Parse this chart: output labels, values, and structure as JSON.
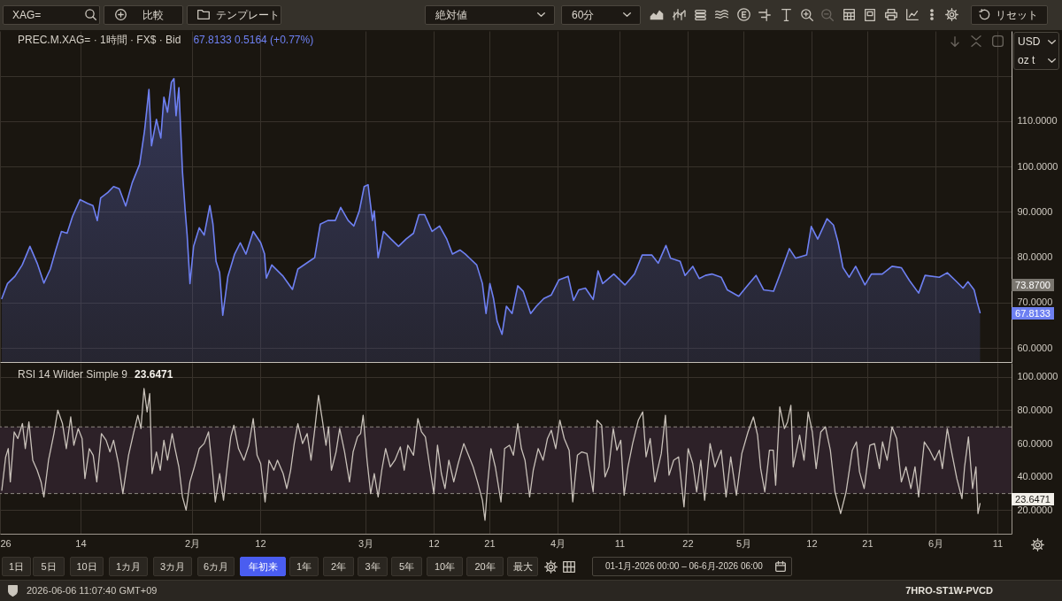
{
  "chart_data": [
    {
      "type": "other",
      "annotations": [
        "XAG=",
        "比較",
        "テンプレート",
        "絶対値",
        "60分",
        "リセット"
      ]
    },
    {
      "type": "area",
      "title": "PREC.M.XAG= · 1時間 · FX$ · Bid",
      "subtitle": "67.8133 0.5164 (+0.77%)",
      "color": "#6e80f2",
      "x": [
        "2026-01-01T07:00",
        "2026-01-02T05:00",
        "2026-01-03T10:00",
        "2026-01-04T14:00",
        "2026-01-05T20:00",
        "2026-01-07T00:00",
        "2026-01-08T02:00",
        "2026-01-09T03:00",
        "2026-01-10T00:00",
        "2026-01-10T22:00",
        "2026-01-11T20:00",
        "2026-01-12T17:00",
        "2026-01-13T22:00",
        "2026-01-15T03:00",
        "2026-01-16T00:00",
        "2026-01-16T17:00",
        "2026-01-17T06:00",
        "2026-01-18T10:00",
        "2026-01-19T08:00",
        "2026-01-20T06:00",
        "2026-01-21T07:00",
        "2026-01-22T08:00",
        "2026-01-23T13:00",
        "2026-01-24T08:00",
        "2026-01-25T01:00",
        "2026-01-25T11:00",
        "2026-01-26T06:00",
        "2026-01-26T23:00",
        "2026-01-27T11:00",
        "2026-01-28T01:00",
        "2026-01-28T16:00",
        "2026-01-29T02:00",
        "2026-01-29T10:00",
        "2026-01-29T21:00",
        "2026-01-30T11:00",
        "2026-01-30T21:00",
        "2026-01-31T05:00",
        "2026-01-31T16:00",
        "2026-02-01T06:00",
        "2026-02-02T04:00",
        "2026-02-02T23:00",
        "2026-02-03T21:00",
        "2026-02-04T09:00",
        "2026-02-04T21:00",
        "2026-02-05T11:00",
        "2026-02-05T23:00",
        "2026-02-06T19:00",
        "2026-02-07T21:00",
        "2026-02-08T19:00",
        "2026-02-09T17:00",
        "2026-02-10T21:00",
        "2026-02-12T02:00",
        "2026-02-12T17:00",
        "2026-02-13T00:00",
        "2026-02-13T21:00",
        "2026-02-15T17:00",
        "2026-02-17T05:00",
        "2026-02-18T02:00",
        "2026-02-19T22:00",
        "2026-02-20T19:00",
        "2026-02-21T17:00",
        "2026-02-22T22:00",
        "2026-02-24T03:00",
        "2026-02-25T00:00",
        "2026-02-26T05:00",
        "2026-02-27T03:00",
        "2026-02-28T00:00",
        "2026-02-28T19:00",
        "2026-03-01T10:00",
        "2026-03-02T03:00",
        "2026-03-02T10:00",
        "2026-03-03T01:00",
        "2026-03-03T22:00",
        "2026-03-05T03:00",
        "2026-03-06T08:00",
        "2026-03-07T13:00",
        "2026-03-08T18:00",
        "2026-03-09T15:00",
        "2026-03-10T13:00",
        "2026-03-11T18:00",
        "2026-03-12T23:00",
        "2026-03-14T03:00",
        "2026-03-15T01:00",
        "2026-03-16T06:00",
        "2026-03-17T03:00",
        "2026-03-18T01:00",
        "2026-03-18T23:00",
        "2026-03-19T21:00",
        "2026-03-20T11:00",
        "2026-03-21T02:00",
        "2026-03-21T16:00",
        "2026-03-22T06:00",
        "2026-03-23T01:00",
        "2026-03-23T18:00",
        "2026-03-24T16:00",
        "2026-03-25T14:00",
        "2026-03-26T11:00",
        "2026-03-27T16:00",
        "2026-03-28T14:00",
        "2026-03-29T19:00",
        "2026-03-31T00:00",
        "2026-04-01T05:00",
        "2026-04-02T17:00",
        "2026-04-03T14:00",
        "2026-04-04T10:00",
        "2026-04-05T12:00",
        "2026-04-06T18:00",
        "2026-04-07T13:00",
        "2026-04-08T07:00",
        "2026-04-10T02:00",
        "2026-04-11T21:00",
        "2026-04-13T10:00",
        "2026-04-14T16:00",
        "2026-04-16T05:00",
        "2026-04-17T06:00",
        "2026-04-18T12:00",
        "2026-04-19T06:00",
        "2026-04-20T19:00",
        "2026-04-21T14:00",
        "2026-04-22T20:00",
        "2026-04-23T21:00",
        "2026-04-24T21:00",
        "2026-04-25T22:00",
        "2026-04-27T10:00",
        "2026-04-28T10:00",
        "2026-04-30T06:00",
        "2026-05-01T12:00",
        "2026-05-03T01:00",
        "2026-05-04T07:00",
        "2026-05-05T21:00",
        "2026-05-07T03:00",
        "2026-05-08T10:00",
        "2026-05-09T10:00",
        "2026-05-11T05:00",
        "2026-05-11T23:00",
        "2026-05-13T00:00",
        "2026-05-14T12:00",
        "2026-05-15T13:00",
        "2026-05-16T07:00",
        "2026-05-17T02:00",
        "2026-05-18T02:00",
        "2026-05-19T03:00",
        "2026-05-20T15:00",
        "2026-05-21T16:00",
        "2026-05-23T10:00",
        "2026-05-25T00:00",
        "2026-05-26T12:00",
        "2026-05-27T19:00",
        "2026-05-29T07:00",
        "2026-05-30T08:00",
        "2026-06-01T15:00",
        "2026-06-02T22:00",
        "2026-06-04T05:00",
        "2026-06-05T11:00",
        "2026-06-06T06:00",
        "2026-06-07T06:00",
        "2026-06-07T18:00",
        "2026-06-08T05:00"
      ],
      "values": [
        70.9,
        74.2,
        75.8,
        78.3,
        82.4,
        78.7,
        74.3,
        77.4,
        81.6,
        85.7,
        85.3,
        89.0,
        92.7,
        91.9,
        91.4,
        88.1,
        93.1,
        94.3,
        95.6,
        95.1,
        91.3,
        96.4,
        100.5,
        107.9,
        117.0,
        104.6,
        110.4,
        106.3,
        115.3,
        112.0,
        118.6,
        119.4,
        111.2,
        117.4,
        98.8,
        90.6,
        84.9,
        74.2,
        82.4,
        86.5,
        84.9,
        91.4,
        87.3,
        79.1,
        76.6,
        67.2,
        75.8,
        80.7,
        83.2,
        80.7,
        85.7,
        83.2,
        80.7,
        75.4,
        78.3,
        75.8,
        72.9,
        77.4,
        79.1,
        79.9,
        87.3,
        88.1,
        88.1,
        91.0,
        88.1,
        86.9,
        90.2,
        95.6,
        96.0,
        88.1,
        90.2,
        79.9,
        85.7,
        84.0,
        82.4,
        84.0,
        85.3,
        89.4,
        89.4,
        85.7,
        86.9,
        84.0,
        80.7,
        81.6,
        80.7,
        79.5,
        78.3,
        74.2,
        67.6,
        74.2,
        70.9,
        65.9,
        63.0,
        69.2,
        67.6,
        73.7,
        72.5,
        67.6,
        69.2,
        70.9,
        71.7,
        75.0,
        75.8,
        70.5,
        72.8,
        73.2,
        70.7,
        77.0,
        74.2,
        76.3,
        73.9,
        76.3,
        80.5,
        80.5,
        78.7,
        82.6,
        79.8,
        79.1,
        76.0,
        78.0,
        75.3,
        76.0,
        76.3,
        75.6,
        72.8,
        71.4,
        73.5,
        76.0,
        72.8,
        72.5,
        77.0,
        81.9,
        79.8,
        80.5,
        86.8,
        84.0,
        88.5,
        87.1,
        83.3,
        77.7,
        75.6,
        78.0,
        73.9,
        76.3,
        76.3,
        78.0,
        77.7,
        74.9,
        72.1,
        76.0,
        75.6,
        76.6,
        74.9,
        73.2,
        74.6,
        72.8,
        70.0,
        67.8
      ],
      "xlim": [
        "2026-01-01",
        "2026-06-13T07:00"
      ],
      "xticks": [
        {
          "value": "2026-01-01",
          "label": null
        },
        {
          "value": "2026-01-14",
          "label": null
        },
        {
          "value": "2026-02-01",
          "label": null
        },
        {
          "value": "2026-02-12",
          "label": null
        },
        {
          "value": "2026-03-01",
          "label": null
        },
        {
          "value": "2026-03-12",
          "label": null
        },
        {
          "value": "2026-03-21",
          "label": null
        },
        {
          "value": "2026-04-01",
          "label": null
        },
        {
          "value": "2026-04-11",
          "label": null
        },
        {
          "value": "2026-04-22",
          "label": null
        },
        {
          "value": "2026-05-01",
          "label": null
        },
        {
          "value": "2026-05-12",
          "label": null
        },
        {
          "value": "2026-05-21",
          "label": null
        },
        {
          "value": "2026-06-01",
          "label": null
        },
        {
          "value": "2026-06-11",
          "label": null
        }
      ],
      "ylim": [
        56.9,
        129.9
      ],
      "yticks": [
        {
          "value": 60,
          "label": "60.0000"
        },
        {
          "value": 70,
          "label": "70.0000"
        },
        {
          "value": 80,
          "label": "80.0000"
        },
        {
          "value": 90,
          "label": "90.0000"
        },
        {
          "value": 100,
          "label": "100.0000"
        },
        {
          "value": 110,
          "label": "110.0000"
        },
        {
          "value": 120,
          "label": null
        }
      ],
      "grid": true,
      "tick_labels": "y",
      "annotations": [
        "USD",
        "oz t",
        "73.8700",
        "67.8133"
      ]
    },
    {
      "type": "line",
      "title": "RSI 14 Wilder Simple 9",
      "subtitle": "23.6471",
      "color": "#c8c1b9",
      "x": [
        "2026-01-01T07:00",
        "2026-01-01T22:00",
        "2026-01-02T08:00",
        "2026-01-02T16:00",
        "2026-01-03T07:00",
        "2026-01-03T21:00",
        "2026-01-04T15:00",
        "2026-01-05T02:00",
        "2026-01-05T16:00",
        "2026-01-06T07:00",
        "2026-01-07T00:00",
        "2026-01-07T15:00",
        "2026-01-08T02:00",
        "2026-01-08T20:00",
        "2026-01-09T17:00",
        "2026-01-10T08:00",
        "2026-01-11T02:00",
        "2026-01-11T17:00",
        "2026-01-12T10:00",
        "2026-01-12T22:00",
        "2026-01-13T15:00",
        "2026-01-14T06:00",
        "2026-01-14T17:00",
        "2026-01-15T10:00",
        "2026-01-16T01:00",
        "2026-01-16T15:00",
        "2026-01-17T09:00",
        "2026-01-18T03:00",
        "2026-01-18T18:00",
        "2026-01-19T08:00",
        "2026-01-20T03:00",
        "2026-01-20T20:00",
        "2026-01-21T18:00",
        "2026-01-22T13:00",
        "2026-01-23T06:00",
        "2026-01-23T18:00",
        "2026-01-24T06:00",
        "2026-01-24T18:00",
        "2026-01-25T04:00",
        "2026-01-25T13:00",
        "2026-01-26T06:00",
        "2026-01-26T21:00",
        "2026-01-27T11:00",
        "2026-01-28T01:00",
        "2026-01-28T19:00",
        "2026-01-29T06:00",
        "2026-01-29T21:00",
        "2026-01-30T11:00",
        "2026-01-31T01:00",
        "2026-01-31T16:00",
        "2026-02-01T09:00",
        "2026-02-02T04:00",
        "2026-02-02T23:00",
        "2026-02-03T16:00",
        "2026-02-04T06:00",
        "2026-02-04T18:00",
        "2026-02-05T11:00",
        "2026-02-06T02:00",
        "2026-02-06T16:00",
        "2026-02-07T06:00",
        "2026-02-07T18:00",
        "2026-02-08T12:00",
        "2026-02-09T09:00",
        "2026-02-10T04:00",
        "2026-02-10T21:00",
        "2026-02-11T12:00",
        "2026-02-12T02:00",
        "2026-02-12T19:00",
        "2026-02-13T10:00",
        "2026-02-14T05:00",
        "2026-02-14T19:00",
        "2026-02-15T17:00",
        "2026-02-16T07:00",
        "2026-02-16T22:00",
        "2026-02-17T12:00",
        "2026-02-18T02:00",
        "2026-02-18T20:00",
        "2026-02-19T14:00",
        "2026-02-20T05:00",
        "2026-02-20T19:00",
        "2026-02-21T10:00",
        "2026-02-22T00:00",
        "2026-02-22T15:00",
        "2026-02-23T01:00",
        "2026-02-23T12:00",
        "2026-02-24T06:00",
        "2026-02-24T20:00",
        "2026-02-25T15:00",
        "2026-02-26T10:00",
        "2026-02-27T00:00",
        "2026-02-27T17:00",
        "2026-02-28T05:00",
        "2026-02-28T15:00",
        "2026-03-01T06:00",
        "2026-03-01T20:00",
        "2026-03-02T10:00",
        "2026-03-03T01:00",
        "2026-03-03T15:00",
        "2026-03-04T06:00",
        "2026-03-05T00:00",
        "2026-03-05T18:00",
        "2026-03-06T15:00",
        "2026-03-07T06:00",
        "2026-03-07T20:00",
        "2026-03-08T18:00",
        "2026-03-09T11:00",
        "2026-03-10T01:00",
        "2026-03-10T16:00",
        "2026-03-11T11:00",
        "2026-03-12T01:00",
        "2026-03-12T15:00",
        "2026-03-13T06:00",
        "2026-03-13T20:00",
        "2026-03-14T11:00",
        "2026-03-15T06:00",
        "2026-03-15T23:00",
        "2026-03-16T21:00",
        "2026-03-17T15:00",
        "2026-03-18T09:00",
        "2026-03-19T02:00",
        "2026-03-19T21:00",
        "2026-03-20T07:00",
        "2026-03-20T18:00",
        "2026-03-21T06:00",
        "2026-03-21T23:00",
        "2026-03-22T21:00",
        "2026-03-23T11:00",
        "2026-03-24T06:00",
        "2026-03-24T21:00",
        "2026-03-25T14:00",
        "2026-03-26T04:00",
        "2026-03-26T18:00",
        "2026-03-27T12:00",
        "2026-03-28T02:00",
        "2026-03-28T21:00",
        "2026-03-29T16:00",
        "2026-03-30T09:00",
        "2026-03-31T00:00",
        "2026-03-31T17:00",
        "2026-04-01T09:00",
        "2026-04-02T02:00",
        "2026-04-02T21:00",
        "2026-04-03T11:00",
        "2026-04-04T05:00",
        "2026-04-04T22:00",
        "2026-04-05T18:00",
        "2026-04-06T18:00",
        "2026-04-07T09:00",
        "2026-04-08T03:00",
        "2026-04-08T16:00",
        "2026-04-09T07:00",
        "2026-04-10T00:00",
        "2026-04-10T14:00",
        "2026-04-11T05:00",
        "2026-04-11T18:00",
        "2026-04-12T09:00",
        "2026-04-13T03:00",
        "2026-04-14T01:00",
        "2026-04-14T18:00",
        "2026-04-15T07:00",
        "2026-04-15T23:00",
        "2026-04-16T17:00",
        "2026-04-17T18:00",
        "2026-04-18T10:00",
        "2026-04-19T00:00",
        "2026-04-19T18:00",
        "2026-04-20T13:00",
        "2026-04-21T10:00",
        "2026-04-22T02:00",
        "2026-04-22T20:00",
        "2026-04-23T11:00",
        "2026-04-24T03:00",
        "2026-04-24T18:00",
        "2026-04-25T15:00",
        "2026-04-26T10:00",
        "2026-04-27T10:00",
        "2026-04-28T05:00",
        "2026-04-28T23:00",
        "2026-04-29T21:00",
        "2026-04-30T18:00",
        "2026-05-01T18:00",
        "2026-05-02T15:00",
        "2026-05-03T07:00",
        "2026-05-03T19:00",
        "2026-05-04T11:00",
        "2026-05-05T05:00",
        "2026-05-05T20:00",
        "2026-05-06T05:00",
        "2026-05-06T21:00",
        "2026-05-07T15:00",
        "2026-05-08T03:00",
        "2026-05-08T16:00",
        "2026-05-09T01:00",
        "2026-05-10T02:00",
        "2026-05-10T19:00",
        "2026-05-11T11:00",
        "2026-05-12T03:00",
        "2026-05-12T18:00",
        "2026-05-13T12:00",
        "2026-05-14T06:00",
        "2026-05-15T01:00",
        "2026-05-15T19:00",
        "2026-05-16T17:00",
        "2026-05-17T14:00",
        "2026-05-18T14:00",
        "2026-05-19T06:00",
        "2026-05-19T18:00",
        "2026-05-20T12:00",
        "2026-05-21T10:00",
        "2026-05-22T04:00",
        "2026-05-22T23:00",
        "2026-05-23T11:00",
        "2026-05-24T05:00",
        "2026-05-25T00:00",
        "2026-05-25T18:00",
        "2026-05-26T12:00",
        "2026-05-27T06:00",
        "2026-05-28T01:00",
        "2026-05-28T17:00",
        "2026-05-29T07:00",
        "2026-05-30T05:00",
        "2026-05-31T02:00",
        "2026-05-31T21:00",
        "2026-06-01T15:00",
        "2026-06-02T03:00",
        "2026-06-02T22:00",
        "2026-06-03T16:00",
        "2026-06-04T11:00",
        "2026-06-05T07:00",
        "2026-06-05T17:00",
        "2026-06-06T08:00",
        "2026-06-07T00:00",
        "2026-06-07T13:00",
        "2026-06-07T21:00",
        "2026-06-08T05:00"
      ],
      "values": [
        32,
        52,
        57,
        37,
        67,
        63,
        72,
        57,
        73,
        50,
        44,
        37,
        28,
        50,
        66,
        80,
        72,
        57,
        76,
        59,
        69,
        63,
        39,
        57,
        53,
        37,
        66,
        62,
        55,
        62,
        48,
        30,
        53,
        66,
        77,
        69,
        93,
        79,
        90,
        42,
        55,
        44,
        62,
        50,
        66,
        57,
        46,
        28,
        20,
        37,
        46,
        57,
        60,
        67,
        46,
        25,
        42,
        26,
        46,
        64,
        71,
        57,
        50,
        59,
        75,
        53,
        48,
        25,
        50,
        44,
        50,
        42,
        33,
        44,
        60,
        72,
        60,
        66,
        50,
        68,
        89,
        75,
        59,
        70,
        44,
        55,
        69,
        55,
        37,
        55,
        64,
        66,
        77,
        50,
        30,
        42,
        28,
        44,
        57,
        46,
        50,
        58,
        44,
        59,
        53,
        75,
        67,
        64,
        44,
        30,
        59,
        42,
        33,
        50,
        37,
        48,
        60,
        53,
        46,
        37,
        26,
        14,
        37,
        57,
        46,
        25,
        57,
        59,
        53,
        72,
        57,
        50,
        28,
        44,
        57,
        50,
        63,
        68,
        57,
        74,
        63,
        56,
        25,
        53,
        55,
        54,
        31,
        74,
        71,
        40,
        46,
        69,
        56,
        62,
        29,
        46,
        60,
        74,
        79,
        52,
        63,
        37,
        54,
        77,
        41,
        50,
        52,
        22,
        57,
        48,
        31,
        50,
        26,
        60,
        46,
        56,
        28,
        52,
        29,
        54,
        67,
        76,
        65,
        45,
        31,
        56,
        56,
        35,
        82,
        69,
        73,
        83,
        46,
        65,
        50,
        79,
        67,
        45,
        67,
        70,
        56,
        31,
        18,
        31,
        56,
        61,
        43,
        33,
        59,
        60,
        45,
        61,
        50,
        70,
        63,
        37,
        46,
        33,
        46,
        28,
        61,
        56,
        50,
        56,
        45,
        69,
        54,
        39,
        27,
        46,
        64,
        33,
        46,
        18,
        24
      ],
      "xlim": [
        "2026-01-01",
        "2026-06-13T07:00"
      ],
      "xticks": [
        {
          "value": "2026-01-01",
          "label": "26"
        },
        {
          "value": "2026-01-14",
          "label": "14"
        },
        {
          "value": "2026-02-01",
          "label": "2月"
        },
        {
          "value": "2026-02-12",
          "label": "12"
        },
        {
          "value": "2026-03-01",
          "label": "3月"
        },
        {
          "value": "2026-03-12",
          "label": "12"
        },
        {
          "value": "2026-03-21",
          "label": "21"
        },
        {
          "value": "2026-04-01",
          "label": "4月"
        },
        {
          "value": "2026-04-11",
          "label": "11"
        },
        {
          "value": "2026-04-22",
          "label": "22"
        },
        {
          "value": "2026-05-01",
          "label": "5月"
        },
        {
          "value": "2026-05-12",
          "label": "12"
        },
        {
          "value": "2026-05-21",
          "label": "21"
        },
        {
          "value": "2026-06-01",
          "label": "6月"
        },
        {
          "value": "2026-06-11",
          "label": "11"
        }
      ],
      "ylim": [
        5.9,
        108.4
      ],
      "yticks": [
        {
          "value": 20,
          "label": "20.0000"
        },
        {
          "value": 40,
          "label": "40.0000"
        },
        {
          "value": 60,
          "label": "60.0000"
        },
        {
          "value": 80,
          "label": "80.0000"
        },
        {
          "value": 100,
          "label": "100.0000"
        }
      ],
      "grid": true,
      "bands": [
        {
          "axis": "y",
          "from": 30,
          "to": 70,
          "color": "#2d2128"
        }
      ],
      "ref_lines": [
        {
          "axis": "y",
          "value": 70,
          "color": "#8f8983",
          "line_style": "dashed"
        },
        {
          "axis": "y",
          "value": 30,
          "color": "#8f8983",
          "line_style": "dashed"
        }
      ],
      "annotations": [
        "23.6471"
      ]
    },
    {
      "type": "other",
      "annotations": [
        "1日",
        "5日",
        "10日",
        "1カ月",
        "3カ月",
        "6カ月",
        "年初来",
        "1年",
        "2年",
        "3年",
        "5年",
        "10年",
        "20年",
        "最大",
        "01-1月-2026 00:00 – 06-6月-2026 06:00",
        "2026-06-06 11:07:40 GMT+09",
        "7HRO-ST1W-PVCD"
      ]
    }
  ]
}
